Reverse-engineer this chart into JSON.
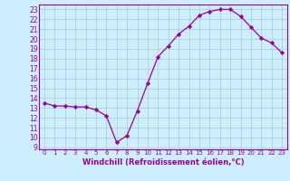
{
  "x": [
    0,
    1,
    2,
    3,
    4,
    5,
    6,
    7,
    8,
    9,
    10,
    11,
    12,
    13,
    14,
    15,
    16,
    17,
    18,
    19,
    20,
    21,
    22,
    23
  ],
  "y": [
    13.5,
    13.2,
    13.2,
    13.1,
    13.1,
    12.8,
    12.2,
    9.5,
    10.2,
    12.7,
    15.5,
    18.2,
    19.3,
    20.5,
    21.3,
    22.4,
    22.8,
    23.0,
    23.0,
    22.3,
    21.2,
    20.1,
    19.6,
    18.6
  ],
  "line_color": "#990099",
  "marker": "D",
  "marker_size": 2.2,
  "bg_color": "#cceeff",
  "grid_color": "#aacccc",
  "xlabel": "Windchill (Refroidissement éolien,°C)",
  "xlabel_color": "#990099",
  "xlim": [
    -0.5,
    23.5
  ],
  "ylim": [
    8.8,
    23.5
  ],
  "yticks": [
    9,
    10,
    11,
    12,
    13,
    14,
    15,
    16,
    17,
    18,
    19,
    20,
    21,
    22,
    23
  ],
  "xticks": [
    0,
    1,
    2,
    3,
    4,
    5,
    6,
    7,
    8,
    9,
    10,
    11,
    12,
    13,
    14,
    15,
    16,
    17,
    18,
    19,
    20,
    21,
    22,
    23
  ],
  "tick_color": "#990099",
  "spine_color": "#990099",
  "xlabel_fontsize": 6.0,
  "ytick_fontsize": 5.5,
  "xtick_fontsize": 5.0
}
